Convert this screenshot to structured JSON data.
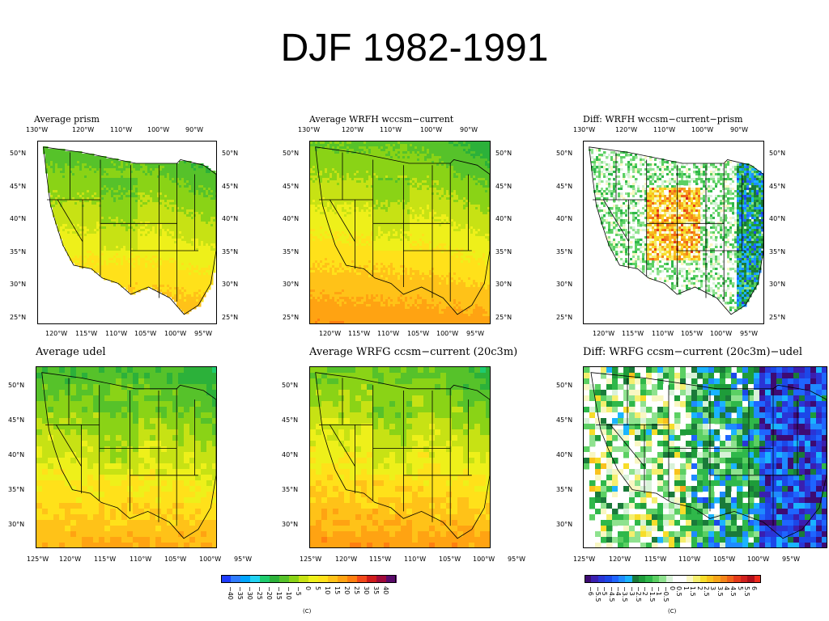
{
  "slide": {
    "title": "DJF 1982-1991"
  },
  "panels": [
    {
      "title": "Average prism",
      "type": "absolute",
      "top_lons": [
        "130°W",
        "120°W",
        "110°W",
        "100°W",
        "90°W"
      ],
      "bottom_lons": [
        "120°W",
        "115°W",
        "110°W",
        "105°W",
        "100°W",
        "95°W"
      ],
      "lats": [
        "50°N",
        "45°N",
        "40°N",
        "35°N",
        "30°N",
        "25°N"
      ]
    },
    {
      "title": "Average WRFH wccsm−current",
      "type": "absolute",
      "top_lons": [
        "130°W",
        "120°W",
        "110°W",
        "100°W",
        "90°W"
      ],
      "bottom_lons": [
        "120°W",
        "115°W",
        "110°W",
        "105°W",
        "100°W",
        "95°W"
      ],
      "lats": [
        "50°N",
        "45°N",
        "40°N",
        "35°N",
        "30°N",
        "25°N"
      ]
    },
    {
      "title": "Diff: WRFH wccsm−current−prism",
      "type": "diff",
      "top_lons": [
        "130°W",
        "120°W",
        "110°W",
        "100°W",
        "90°W"
      ],
      "bottom_lons": [
        "120°W",
        "115°W",
        "110°W",
        "105°W",
        "100°W",
        "95°W"
      ],
      "lats": [
        "50°N",
        "45°N",
        "40°N",
        "35°N",
        "30°N",
        "25°N"
      ]
    },
    {
      "title": "Average udel",
      "type": "absolute",
      "bottom_lons": [
        "125°W",
        "120°W",
        "115°W",
        "110°W",
        "105°W",
        "100°W",
        "95°W"
      ],
      "lats": [
        "50°N",
        "45°N",
        "40°N",
        "35°N",
        "30°N"
      ]
    },
    {
      "title": "Average WRFG ccsm−current (20c3m)",
      "type": "absolute",
      "bottom_lons": [
        "125°W",
        "120°W",
        "115°W",
        "110°W",
        "105°W",
        "100°W",
        "95°W"
      ],
      "lats": [
        "50°N",
        "45°N",
        "40°N",
        "35°N",
        "30°N"
      ]
    },
    {
      "title": "Diff: WRFG ccsm−current (20c3m)−udel",
      "type": "diff",
      "bottom_lons": [
        "125°W",
        "120°W",
        "115°W",
        "110°W",
        "105°W",
        "100°W",
        "95°W"
      ],
      "lats": [
        "50°N",
        "45°N",
        "40°N",
        "35°N",
        "30°N"
      ]
    }
  ],
  "colorbars": {
    "absolute": {
      "labels": [
        "−40",
        "−35",
        "−30",
        "−25",
        "−20",
        "−15",
        "−10",
        "−5",
        "0",
        "5",
        "10",
        "15",
        "20",
        "25",
        "30",
        "35",
        "40"
      ],
      "colors": [
        "#1e3cff",
        "#2f7cff",
        "#00a5ff",
        "#22d3f2",
        "#1ecc6e",
        "#2cb13a",
        "#56c22a",
        "#8ad316",
        "#c7e214",
        "#eef01a",
        "#ffe11a",
        "#ffc218",
        "#ffa312",
        "#ff7f10",
        "#f2491a",
        "#cf1c1c",
        "#a00a3a",
        "#5a0a6a"
      ],
      "note": "(C)"
    },
    "diff": {
      "labels": [
        "−6",
        "−5.5",
        "−5",
        "−4.5",
        "−4",
        "−3.5",
        "−3",
        "−2.5",
        "−2",
        "−1.5",
        "−1",
        "−0.5",
        "0",
        "0.5",
        "1",
        "1.5",
        "2",
        "2.5",
        "3",
        "3.5",
        "4",
        "4.5",
        "5",
        "5.5",
        "6"
      ],
      "colors": [
        "#3d0b73",
        "#3a1fb0",
        "#2a35d6",
        "#1c47e8",
        "#1f65ff",
        "#1f8bff",
        "#1ab4ff",
        "#1a7a3a",
        "#1e9c3a",
        "#2fb84a",
        "#5bd063",
        "#8fe28f",
        "#d8f2d8",
        "#ffffff",
        "#ffffff",
        "#f9f7c2",
        "#f5ef6e",
        "#f7dd2a",
        "#f9c21d",
        "#f7a51a",
        "#f4851a",
        "#ef621a",
        "#e53b1a",
        "#d0201d",
        "#b00f1a",
        "#ef2a1e"
      ],
      "note": "(C)"
    }
  }
}
